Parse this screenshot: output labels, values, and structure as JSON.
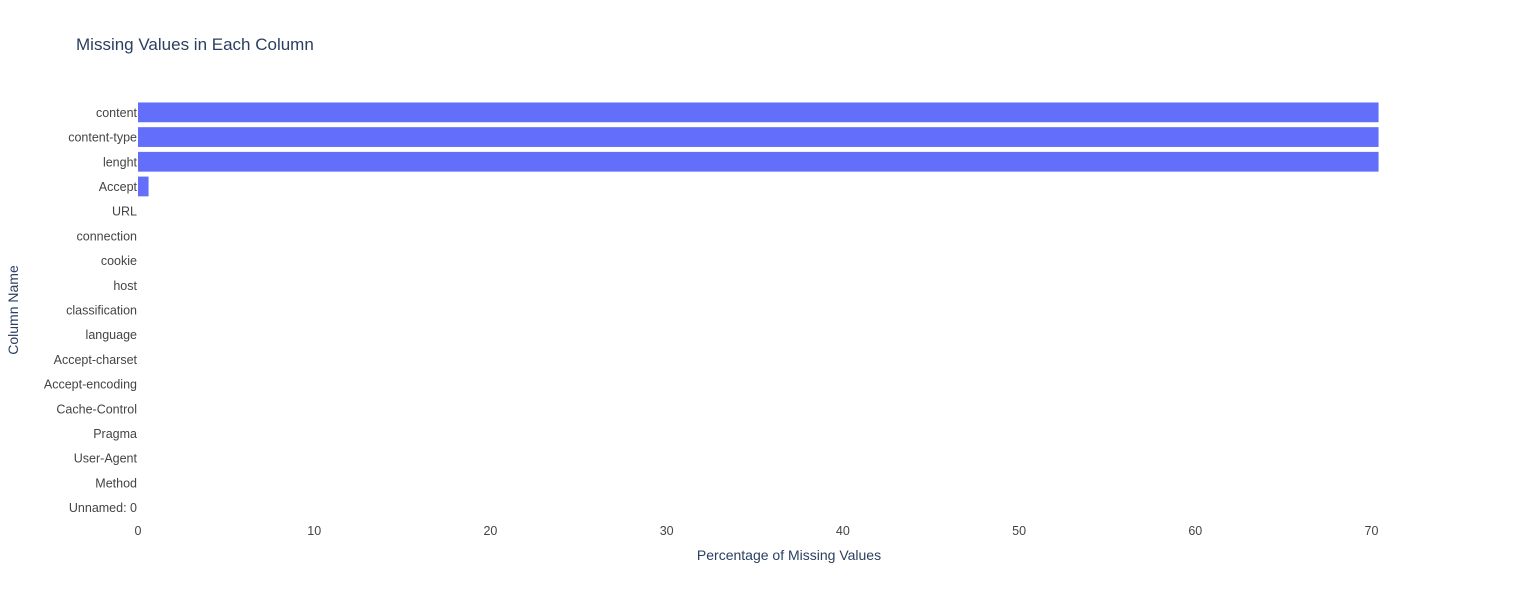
{
  "chart_data": {
    "type": "bar",
    "orientation": "horizontal",
    "title": "Missing Values in Each Column",
    "xlabel": "Percentage of Missing Values",
    "ylabel": "Column Name",
    "xlim": [
      0,
      74
    ],
    "xticks": [
      0,
      10,
      20,
      30,
      40,
      50,
      60,
      70
    ],
    "grid": false,
    "categories": [
      "Unnamed: 0",
      "Method",
      "User-Agent",
      "Pragma",
      "Cache-Control",
      "Accept-encoding",
      "Accept-charset",
      "language",
      "classification",
      "host",
      "cookie",
      "connection",
      "URL",
      "Accept",
      "lenght",
      "content-type",
      "content"
    ],
    "values": [
      0,
      0,
      0,
      0,
      0,
      0,
      0,
      0,
      0,
      0,
      0,
      0,
      0,
      0.6,
      70.4,
      70.4,
      70.4
    ],
    "bar_color": "#636efa",
    "text_color": "#2a3f5f",
    "tick_color": "#444444"
  }
}
